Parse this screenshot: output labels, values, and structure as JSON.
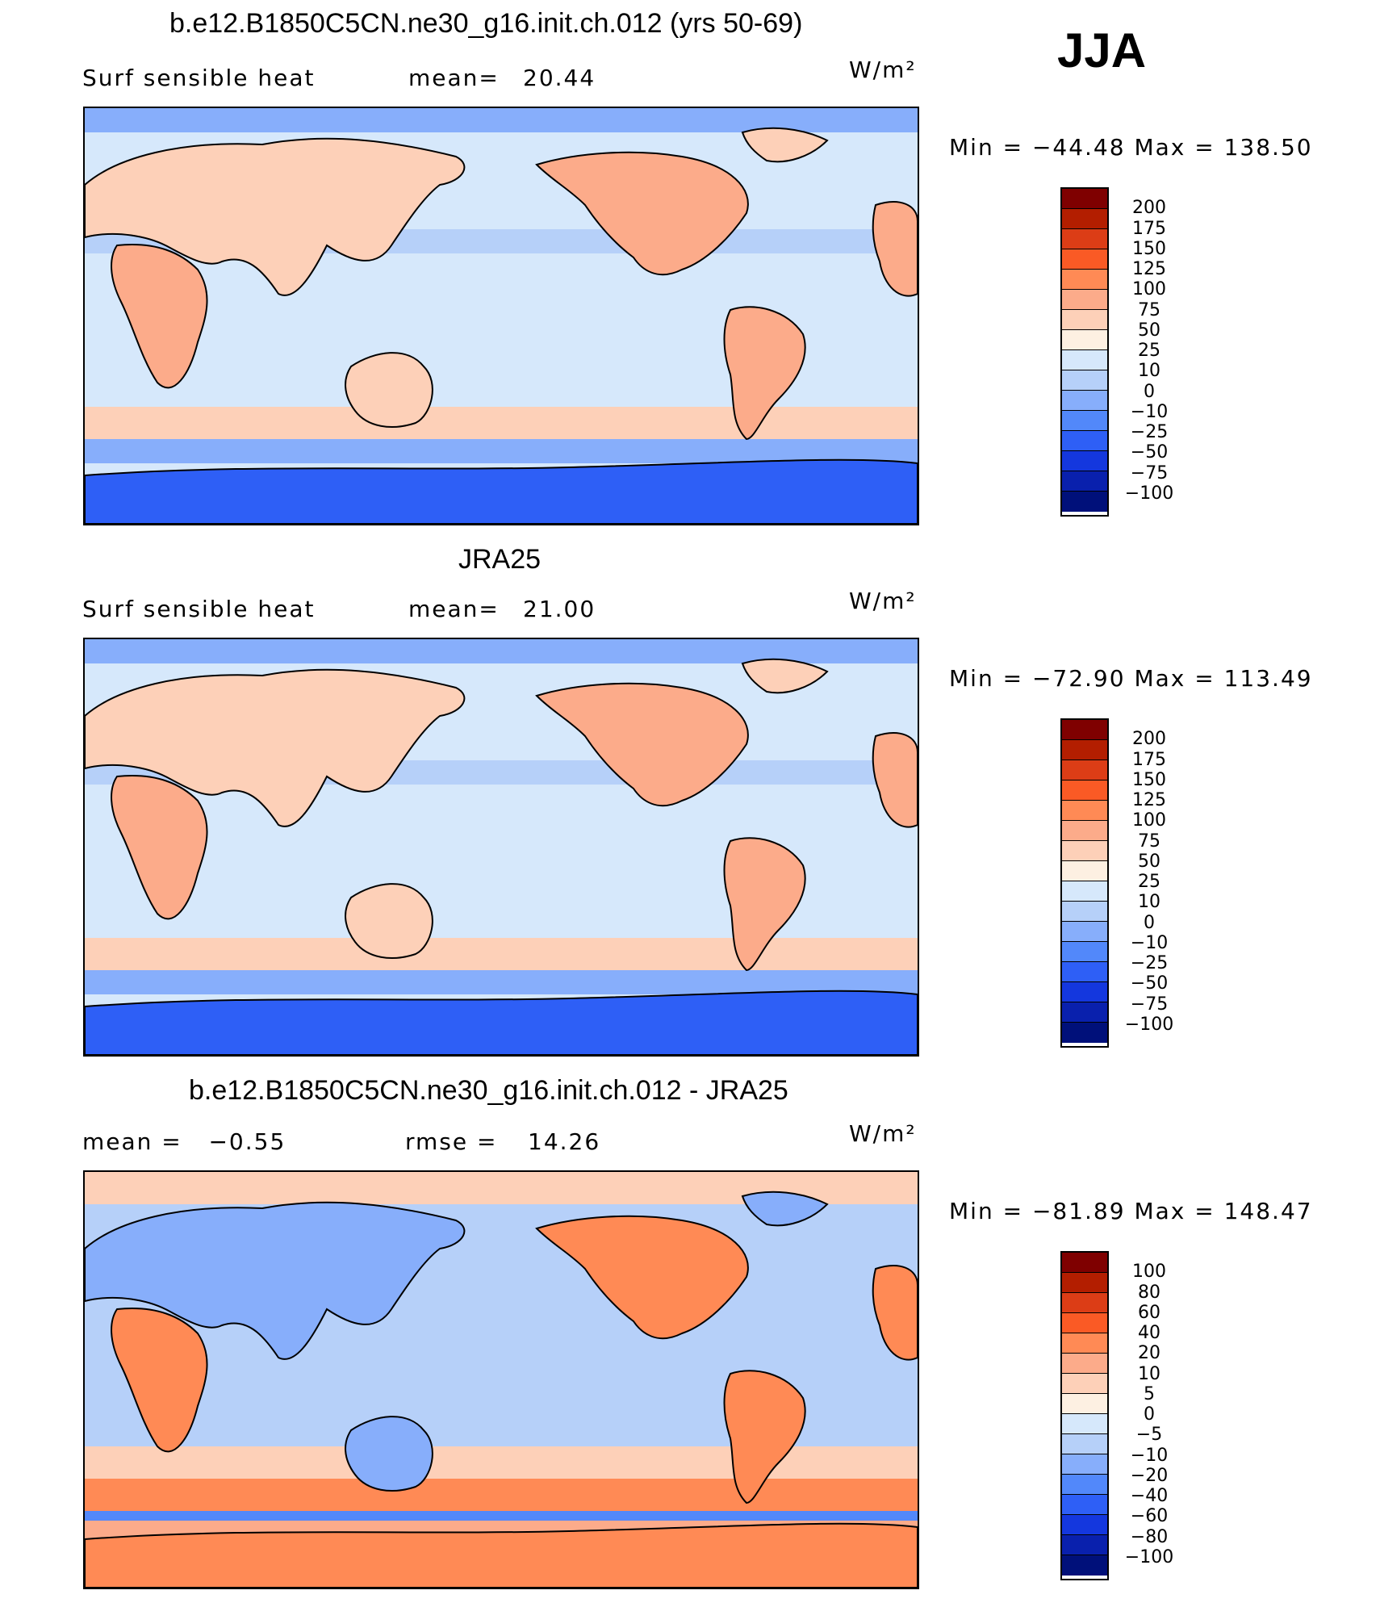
{
  "season": "JJA",
  "panels": [
    {
      "title": "b.e12.B1850C5CN.ne30_g16.init.ch.012 (yrs 50-69)",
      "left_label": "Surf sensible heat",
      "stat_label": "mean=",
      "stat_value": "20.44",
      "units": "W/m²",
      "minmax": "Min = −44.48  Max = 138.50",
      "levels": [
        "200",
        "175",
        "150",
        "125",
        "100",
        "75",
        "50",
        "25",
        "10",
        "0",
        "−10",
        "−25",
        "−50",
        "−75",
        "−100"
      ]
    },
    {
      "title": "JRA25",
      "left_label": "Surf sensible heat",
      "stat_label": "mean=",
      "stat_value": "21.00",
      "units": "W/m²",
      "minmax": "Min = −72.90  Max = 113.49",
      "levels": [
        "200",
        "175",
        "150",
        "125",
        "100",
        "75",
        "50",
        "25",
        "10",
        "0",
        "−10",
        "−25",
        "−50",
        "−75",
        "−100"
      ]
    },
    {
      "title": "b.e12.B1850C5CN.ne30_g16.init.ch.012 - JRA25",
      "left_label": "mean =   −0.55",
      "stat_label": "rmse =",
      "stat_value": "14.26",
      "units": "W/m²",
      "minmax": "Min = −81.89  Max = 148.47",
      "levels": [
        "100",
        "80",
        "60",
        "40",
        "20",
        "10",
        "5",
        "0",
        "−5",
        "−10",
        "−20",
        "−40",
        "−60",
        "−80",
        "−100"
      ]
    }
  ],
  "colors": {
    "palette": [
      "#7f0000",
      "#b31e00",
      "#dc3d16",
      "#fa5a25",
      "#ff8a55",
      "#fcab8a",
      "#fdd0b8",
      "#fdf0e2",
      "#d6e8fb",
      "#b6d0f9",
      "#87aefb",
      "#5288fa",
      "#2e5ff6",
      "#1437de",
      "#0920ad",
      "#00107a"
    ],
    "ocean_mid": "#d6e8fb",
    "ocean_cool": "#b6d0f9",
    "arctic": "#87aefb",
    "antarctic": "#2e5ff6",
    "land_warm": "#fcab8a",
    "land_light": "#fdd0b8",
    "storm_band": "#fdd0b8"
  },
  "chart_data": [
    {
      "type": "heatmap",
      "title": "b.e12.B1850C5CN.ne30_g16.init.ch.012 (yrs 50-69)",
      "variable": "Surf sensible heat",
      "units": "W/m2",
      "mean": 20.44,
      "min": -44.48,
      "max": 138.5,
      "contour_levels": [
        -100,
        -75,
        -50,
        -25,
        -10,
        0,
        10,
        25,
        50,
        75,
        100,
        125,
        150,
        175,
        200
      ]
    },
    {
      "type": "heatmap",
      "title": "JRA25",
      "variable": "Surf sensible heat",
      "units": "W/m2",
      "mean": 21.0,
      "min": -72.9,
      "max": 113.49,
      "contour_levels": [
        -100,
        -75,
        -50,
        -25,
        -10,
        0,
        10,
        25,
        50,
        75,
        100,
        125,
        150,
        175,
        200
      ]
    },
    {
      "type": "heatmap",
      "title": "b.e12.B1850C5CN.ne30_g16.init.ch.012 - JRA25",
      "units": "W/m2",
      "mean": -0.55,
      "rmse": 14.26,
      "min": -81.89,
      "max": 148.47,
      "contour_levels": [
        -100,
        -80,
        -60,
        -40,
        -20,
        -10,
        -5,
        0,
        5,
        10,
        20,
        40,
        60,
        80,
        100
      ]
    }
  ]
}
